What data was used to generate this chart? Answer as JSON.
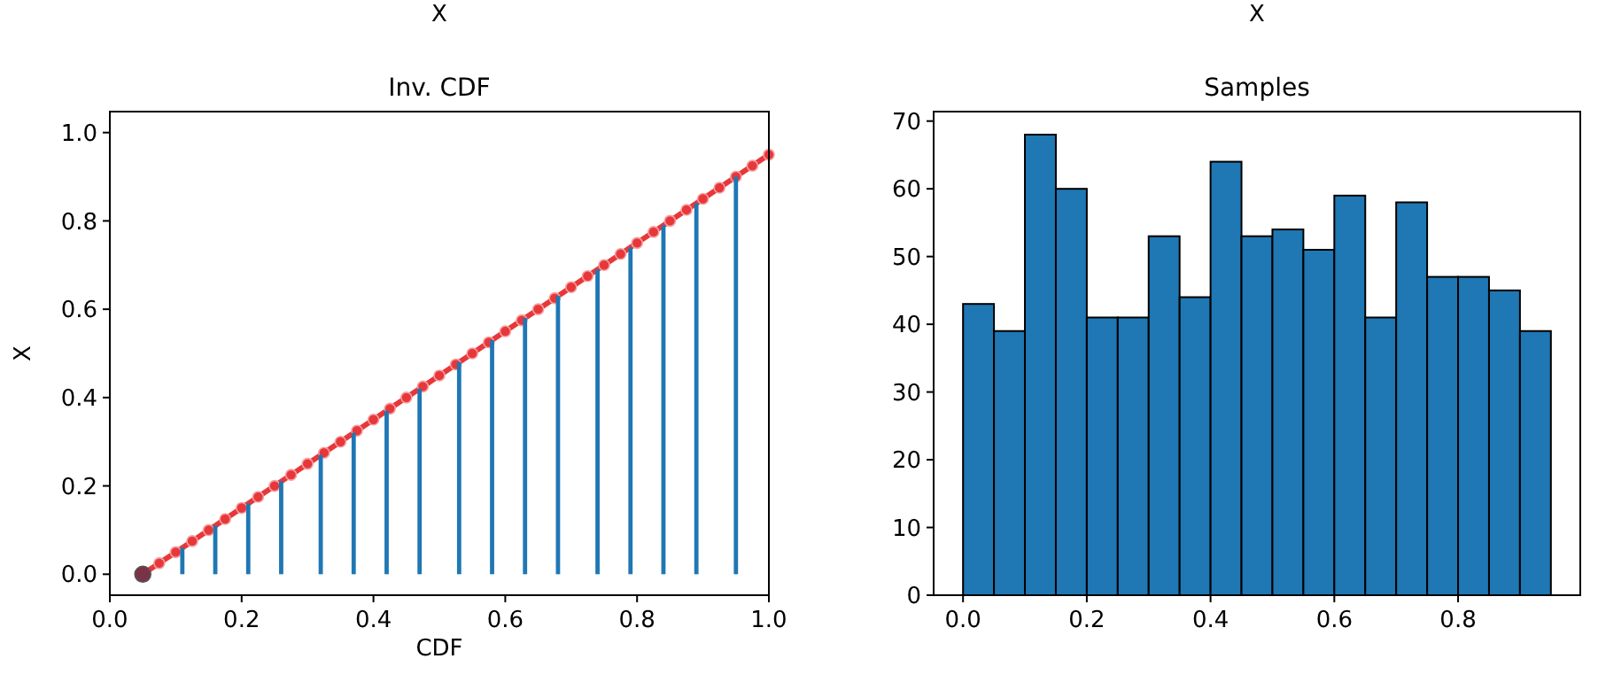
{
  "chart_data": [
    {
      "type": "line",
      "title": "X",
      "subtitle": "Inv. CDF",
      "xlabel": "CDF",
      "ylabel": "X",
      "xlim": [
        0,
        1
      ],
      "ylim": [
        -0.0475,
        1.0475
      ],
      "xticks": [
        {
          "value": 0,
          "label": "0.0"
        },
        {
          "value": 0.2,
          "label": "0.2"
        },
        {
          "value": 0.4,
          "label": "0.4"
        },
        {
          "value": 0.6,
          "label": "0.6"
        },
        {
          "value": 0.8,
          "label": "0.8"
        },
        {
          "value": 1,
          "label": "1.0"
        }
      ],
      "yticks": [
        {
          "value": 0,
          "label": "0.0"
        },
        {
          "value": 0.2,
          "label": "0.2"
        },
        {
          "value": 0.4,
          "label": "0.4"
        },
        {
          "value": 0.6,
          "label": "0.6"
        },
        {
          "value": 0.8,
          "label": "0.8"
        },
        {
          "value": 1,
          "label": "1.0"
        }
      ],
      "series": [
        {
          "type": "bar",
          "color": "#1f77b4",
          "x": [
            0.11,
            0.16,
            0.21,
            0.26,
            0.32,
            0.37,
            0.42,
            0.47,
            0.53,
            0.58,
            0.63,
            0.68,
            0.74,
            0.79,
            0.84,
            0.89,
            0.95
          ],
          "values": [
            0.06,
            0.11,
            0.16,
            0.21,
            0.27,
            0.32,
            0.37,
            0.42,
            0.48,
            0.53,
            0.58,
            0.63,
            0.69,
            0.74,
            0.79,
            0.84,
            0.9
          ]
        },
        {
          "type": "line",
          "marker": "circle",
          "color": "#e8373a",
          "x": [
            0.05,
            0.075,
            0.1,
            0.125,
            0.15,
            0.175,
            0.2,
            0.225,
            0.25,
            0.275,
            0.3,
            0.325,
            0.35,
            0.375,
            0.4,
            0.425,
            0.45,
            0.475,
            0.5,
            0.525,
            0.55,
            0.575,
            0.6,
            0.625,
            0.65,
            0.675,
            0.7,
            0.725,
            0.75,
            0.775,
            0.8,
            0.825,
            0.85,
            0.875,
            0.9,
            0.925,
            0.95,
            0.975,
            1.0
          ],
          "values": [
            0,
            0.025,
            0.05,
            0.075,
            0.1,
            0.125,
            0.15,
            0.175,
            0.2,
            0.225,
            0.25,
            0.275,
            0.3,
            0.325,
            0.35,
            0.375,
            0.4,
            0.425,
            0.45,
            0.475,
            0.5,
            0.525,
            0.55,
            0.575,
            0.6,
            0.625,
            0.65,
            0.675,
            0.7,
            0.725,
            0.75,
            0.775,
            0.8,
            0.825,
            0.85,
            0.875,
            0.9,
            0.925,
            0.95
          ]
        },
        {
          "type": "scatter",
          "marker": "circle",
          "color": "#7a3346",
          "x": [
            0.05
          ],
          "values": [
            0
          ]
        }
      ]
    },
    {
      "type": "histogram",
      "title": "X",
      "subtitle": "Samples",
      "color": "#1f77b4",
      "bins": [
        0,
        0.05,
        0.1,
        0.15,
        0.2,
        0.25,
        0.3,
        0.35,
        0.4,
        0.45,
        0.5,
        0.55,
        0.6,
        0.65,
        0.7,
        0.75,
        0.8,
        0.85,
        0.9,
        0.95
      ],
      "values": [
        43,
        39,
        68,
        60,
        41,
        41,
        53,
        44,
        64,
        53,
        54,
        51,
        59,
        41,
        58,
        47,
        47,
        45,
        39
      ],
      "xlim": [
        -0.0475,
        0.9975
      ],
      "ylim": [
        0,
        71.4
      ],
      "xticks": [
        {
          "value": 0,
          "label": "0.0"
        },
        {
          "value": 0.2,
          "label": "0.2"
        },
        {
          "value": 0.4,
          "label": "0.4"
        },
        {
          "value": 0.6,
          "label": "0.6"
        },
        {
          "value": 0.8,
          "label": "0.8"
        }
      ],
      "yticks": [
        0,
        10,
        20,
        30,
        40,
        50,
        60,
        70
      ]
    }
  ]
}
